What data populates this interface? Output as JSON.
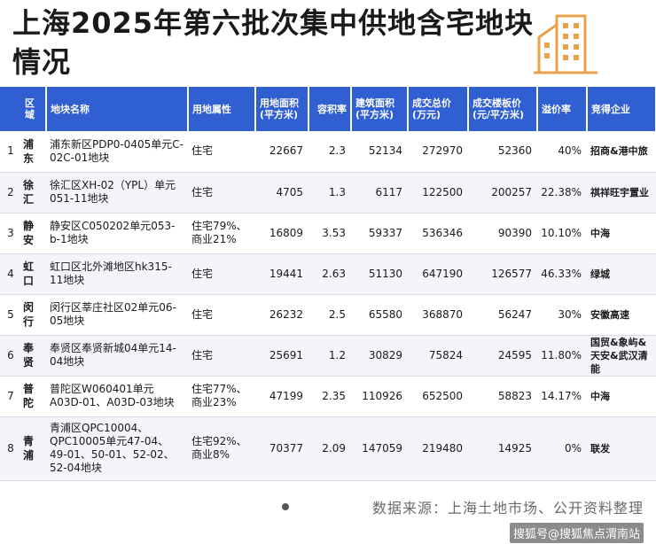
{
  "title": "上海2025年第六批次集中供地含宅地块情况",
  "headers": [
    "区域",
    "地块名称",
    "用地属性",
    "用地面积(平方米)",
    "容积率",
    "建筑面积(平方米)",
    "成交总价(万元)",
    "成交楼板价(元/平方米)",
    "溢价率",
    "竞得企业"
  ],
  "rows": [
    {
      "idx": "1",
      "district": "浦东",
      "name": "浦东新区PDP0-0405单元C-02C-01地块",
      "use": "住宅",
      "area": "22667",
      "far": "2.3",
      "gfa": "52134",
      "price": "272970",
      "unit": "52360",
      "premium": "40%",
      "company": "招商&港中旅"
    },
    {
      "idx": "2",
      "district": "徐汇",
      "name": "徐汇区XH-02（YPL）单元051-11地块",
      "use": "住宅",
      "area": "4705",
      "far": "1.3",
      "gfa": "6117",
      "price": "122500",
      "unit": "200257",
      "premium": "22.38%",
      "company": "祺祥旺宇置业"
    },
    {
      "idx": "3",
      "district": "静安",
      "name": "静安区C050202单元053-b-1地块",
      "use": "住宅79%、商业21%",
      "area": "16809",
      "far": "3.53",
      "gfa": "59337",
      "price": "536346",
      "unit": "90390",
      "premium": "10.10%",
      "company": "中海"
    },
    {
      "idx": "4",
      "district": "虹口",
      "name": "虹口区北外滩地区hk315-11地块",
      "use": "住宅",
      "area": "19441",
      "far": "2.63",
      "gfa": "51130",
      "price": "647190",
      "unit": "126577",
      "premium": "46.33%",
      "company": "绿城"
    },
    {
      "idx": "5",
      "district": "闵行",
      "name": "闵行区莘庄社区02单元06-05地块",
      "use": "住宅",
      "area": "26232",
      "far": "2.5",
      "gfa": "65580",
      "price": "368870",
      "unit": "56247",
      "premium": "30%",
      "company": "安徽高速"
    },
    {
      "idx": "6",
      "district": "奉贤",
      "name": "奉贤区奉贤新城04单元14-04地块",
      "use": "住宅",
      "area": "25691",
      "far": "1.2",
      "gfa": "30829",
      "price": "75824",
      "unit": "24595",
      "premium": "11.80%",
      "company": "国贸&象屿&天安&武汉清能"
    },
    {
      "idx": "7",
      "district": "普陀",
      "name": "普陀区W060401单元A03D-01、A03D-03地块",
      "use": "住宅77%、商业23%",
      "area": "47199",
      "far": "2.35",
      "gfa": "110926",
      "price": "652500",
      "unit": "58823",
      "premium": "14.17%",
      "company": "中海"
    },
    {
      "idx": "8",
      "district": "青浦",
      "name": "青浦区QPC10004、QPC10005单元47-04、49-01、50-01、52-02、52-04地块",
      "use": "住宅92%、商业8%",
      "area": "70377",
      "far": "2.09",
      "gfa": "147059",
      "price": "219480",
      "unit": "14925",
      "premium": "0%",
      "company": "联发"
    }
  ],
  "source": "数据来源：上海土地市场、公开资料整理",
  "brand": "搜狐号@搜狐焦点渭南站",
  "colors": {
    "header_bg": "#2f5fd0",
    "icon": "#e8a24a"
  }
}
